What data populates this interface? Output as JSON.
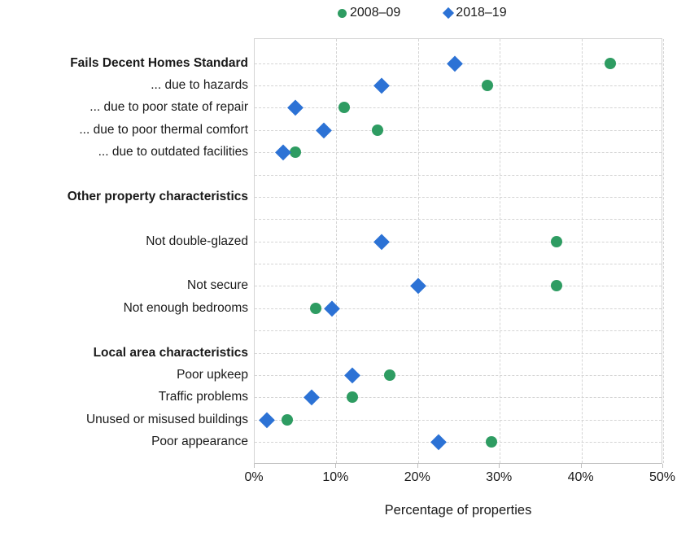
{
  "chart_data": {
    "type": "scatter",
    "variant": "horizontal-dot-plot",
    "title": "",
    "xlabel": "Percentage of properties",
    "x_axis": {
      "min": 0,
      "max": 50,
      "tick_step": 10,
      "tick_labels": [
        "0%",
        "10%",
        "20%",
        "30%",
        "40%",
        "50%"
      ],
      "unit": "%"
    },
    "grid": "dashed horizontal and vertical",
    "legend_position": "top",
    "series": [
      {
        "name": "2008–09",
        "marker": "circle",
        "color": "#2E9C62"
      },
      {
        "name": "2018–19",
        "marker": "diamond",
        "color": "#2C72D5"
      }
    ],
    "rows": [
      {
        "label": "Fails Decent Homes Standard",
        "bold": true,
        "values": [
          43.5,
          24.5
        ]
      },
      {
        "label": "... due to hazards",
        "bold": false,
        "values": [
          28.5,
          15.5
        ]
      },
      {
        "label": "... due to poor state of repair",
        "bold": false,
        "values": [
          11,
          5
        ]
      },
      {
        "label": "... due to poor thermal comfort",
        "bold": false,
        "values": [
          15,
          8.5
        ]
      },
      {
        "label": "... due to outdated facilities",
        "bold": false,
        "values": [
          5,
          3.5
        ]
      },
      {
        "label": "",
        "bold": false,
        "values": [
          null,
          null
        ]
      },
      {
        "label": "Other property characteristics",
        "bold": true,
        "values": [
          null,
          null
        ]
      },
      {
        "label": "",
        "bold": false,
        "values": [
          null,
          null
        ]
      },
      {
        "label": "Not double-glazed",
        "bold": false,
        "values": [
          37,
          15.5
        ]
      },
      {
        "label": "",
        "bold": false,
        "values": [
          null,
          null
        ]
      },
      {
        "label": "Not secure",
        "bold": false,
        "values": [
          37,
          20
        ]
      },
      {
        "label": "Not enough bedrooms",
        "bold": false,
        "values": [
          7.5,
          9.5
        ]
      },
      {
        "label": "",
        "bold": false,
        "values": [
          null,
          null
        ]
      },
      {
        "label": "Local area characteristics",
        "bold": true,
        "values": [
          null,
          null
        ]
      },
      {
        "label": "Poor upkeep",
        "bold": false,
        "values": [
          16.5,
          12
        ]
      },
      {
        "label": "Traffic problems",
        "bold": false,
        "values": [
          12,
          7
        ]
      },
      {
        "label": "Unused or misused buildings",
        "bold": false,
        "values": [
          4,
          1.5
        ]
      },
      {
        "label": "Poor appearance",
        "bold": false,
        "values": [
          29,
          22.5
        ]
      }
    ],
    "colors": {
      "grid": "#d4d4d4",
      "axis": "#bfbfbf",
      "text": "#1a1a1a",
      "series_2008_09": "#2E9C62",
      "series_2018_19": "#2C72D5"
    }
  }
}
